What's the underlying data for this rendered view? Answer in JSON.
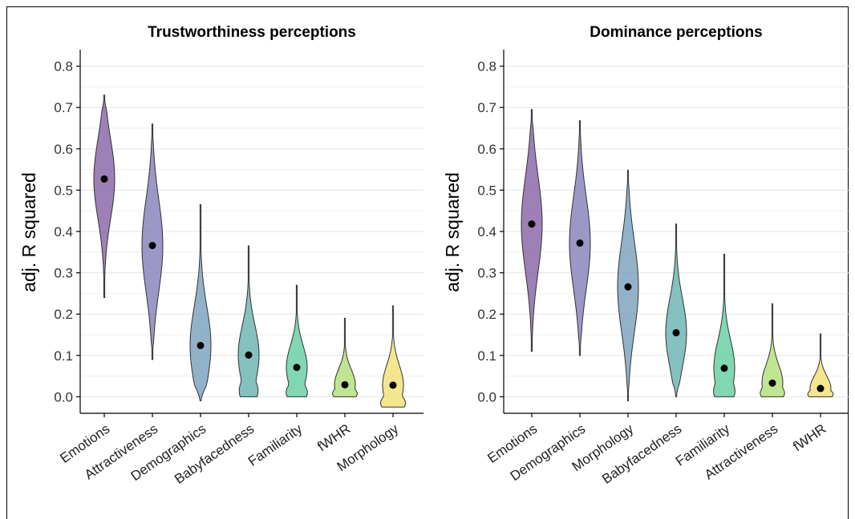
{
  "chart_data": [
    {
      "type": "violin",
      "title": "Trustworthiness perceptions",
      "xlabel": "",
      "ylabel": "adj. R squared",
      "ylim": [
        -0.04,
        0.84
      ],
      "yticks": [
        0.0,
        0.1,
        0.2,
        0.3,
        0.4,
        0.5,
        0.6,
        0.7,
        0.8
      ],
      "ytick_labels": [
        "0.0",
        "0.1",
        "0.2",
        "0.3",
        "0.4",
        "0.5",
        "0.6",
        "0.7",
        "0.8"
      ],
      "grid": true,
      "categories": [
        "Emotions",
        "Attractiveness",
        "Demographics",
        "Babyfacedness",
        "Familiarity",
        "fWHR",
        "Morphology"
      ],
      "means": [
        0.527,
        0.366,
        0.124,
        0.101,
        0.071,
        0.029,
        0.028
      ],
      "ranges": [
        [
          0.24,
          0.73
        ],
        [
          0.09,
          0.66
        ],
        [
          -0.01,
          0.465
        ],
        [
          0.0,
          0.365
        ],
        [
          0.0,
          0.27
        ],
        [
          0.0,
          0.19
        ],
        [
          -0.025,
          0.22
        ]
      ],
      "colors": [
        "#8c6aa8",
        "#8a86bd",
        "#7fa5c0",
        "#6fb6b4",
        "#6cd0a6",
        "#b5e07e",
        "#f2e27a"
      ]
    },
    {
      "type": "violin",
      "title": "Dominance perceptions",
      "xlabel": "",
      "ylabel": "adj. R squared",
      "ylim": [
        -0.04,
        0.84
      ],
      "yticks": [
        0.0,
        0.1,
        0.2,
        0.3,
        0.4,
        0.5,
        0.6,
        0.7,
        0.8
      ],
      "ytick_labels": [
        "0.0",
        "0.1",
        "0.2",
        "0.3",
        "0.4",
        "0.5",
        "0.6",
        "0.7",
        "0.8"
      ],
      "grid": true,
      "categories": [
        "Emotions",
        "Demographics",
        "Morphology",
        "Babyfacedness",
        "Familiarity",
        "Attractiveness",
        "fWHR"
      ],
      "means": [
        0.418,
        0.372,
        0.266,
        0.155,
        0.069,
        0.033,
        0.02
      ],
      "ranges": [
        [
          0.11,
          0.695
        ],
        [
          0.1,
          0.668
        ],
        [
          -0.01,
          0.548
        ],
        [
          0.0,
          0.418
        ],
        [
          0.0,
          0.345
        ],
        [
          0.0,
          0.225
        ],
        [
          0.0,
          0.152
        ]
      ],
      "colors": [
        "#8c6aa8",
        "#8a86bd",
        "#7fa5c0",
        "#6fb6b4",
        "#6cd0a6",
        "#b5e07e",
        "#f2e27a"
      ]
    }
  ]
}
